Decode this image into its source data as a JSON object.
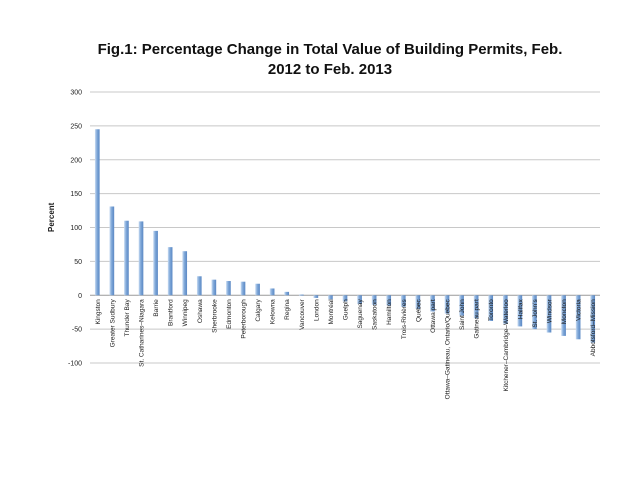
{
  "chart_data": {
    "type": "bar",
    "title": "Fig.1: Percentage Change in Total Value of Building Permits, Feb. 2012 to Feb. 2013",
    "title_lines": [
      "Fig.1: Percentage Change in Total Value of Building Permits, Feb.",
      "2012 to Feb. 2013"
    ],
    "xlabel": "",
    "ylabel": "Percent",
    "ylim": [
      -100,
      300
    ],
    "yticks": [
      300,
      250,
      200,
      150,
      100,
      50,
      0,
      -50,
      -100
    ],
    "grid": true,
    "categories": [
      "Kingston",
      "Greater Sudbury",
      "Thunder Bay",
      "St. Catharines–Niagara",
      "Barrie",
      "Brantford",
      "Winnipeg",
      "Oshawa",
      "Sherbrooke",
      "Edmonton",
      "Peterborough",
      "Calgary",
      "Kelowna",
      "Regina",
      "Vancouver",
      "London",
      "Montréal",
      "Guelph",
      "Saguenay",
      "Saskatoon",
      "Hamilton",
      "Trois-Rivières",
      "Québec",
      "Ottawa part",
      "Ottawa–Gatineau, Ontario/Quebec",
      "Saint John",
      "Gatineau part",
      "Toronto",
      "Kitchener–Cambridge–Waterloo",
      "Halifax",
      "St. John's",
      "Windsor",
      "Moncton",
      "Victoria",
      "Abbotsford–Mission"
    ],
    "values": [
      245,
      131,
      110,
      109,
      95,
      71,
      65,
      28,
      23,
      21,
      20,
      17,
      10,
      5,
      1,
      -4,
      -6,
      -9,
      -13,
      -14,
      -15,
      -17,
      -20,
      -24,
      -27,
      -30,
      -34,
      -38,
      -42,
      -46,
      -50,
      -55,
      -60,
      -65,
      -70
    ],
    "bar_color": "#7ea7d8"
  }
}
